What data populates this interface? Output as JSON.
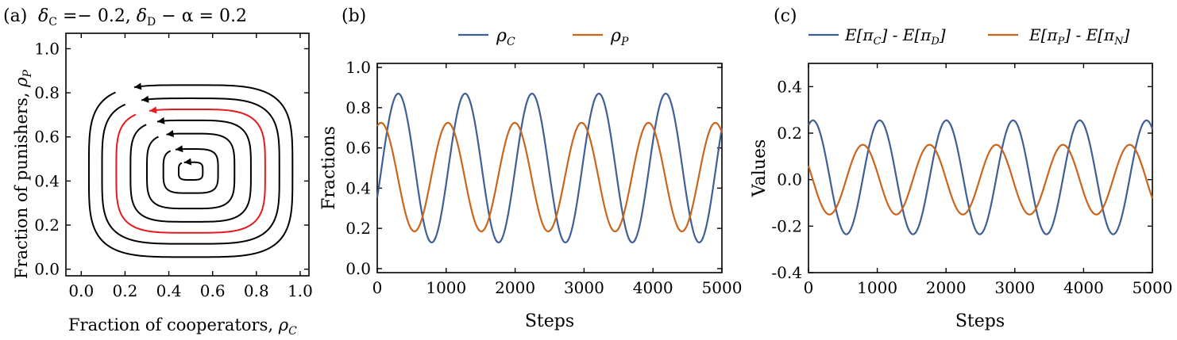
{
  "figure": {
    "panels": [
      "(a)",
      "(b)",
      "(c)"
    ]
  },
  "chart_data": [
    {
      "id": "a",
      "type": "line",
      "panel_label": "(a)",
      "title": {
        "d1": "δ",
        "d1_sub": "C",
        "mid": " =− 0.2, ",
        "d2": "δ",
        "d2_sub": "D",
        "tail": " − α = 0.2"
      },
      "xlabel": "Fraction of cooperators, ",
      "xlabel_sym": "ρ",
      "xlabel_sub": "C",
      "ylabel": "Fraction of punishers, ",
      "ylabel_sym": "ρ",
      "ylabel_sub": "P",
      "xlim": [
        -0.07,
        1.04
      ],
      "ylim": [
        -0.03,
        1.07
      ],
      "x_ticks": [
        "0.0",
        "0.2",
        "0.4",
        "0.6",
        "0.8",
        "1.0"
      ],
      "y_ticks": [
        "0.0",
        "0.2",
        "0.4",
        "0.6",
        "0.8",
        "1.0"
      ],
      "center": [
        0.5,
        0.445
      ],
      "orbits": [
        {
          "half_width": 0.055,
          "half_height": 0.04,
          "color": "#000000"
        },
        {
          "half_width": 0.125,
          "half_height": 0.1,
          "color": "#000000"
        },
        {
          "half_width": 0.2,
          "half_height": 0.17,
          "color": "#000000"
        },
        {
          "half_width": 0.275,
          "half_height": 0.23,
          "color": "#000000"
        },
        {
          "half_width": 0.34,
          "half_height": 0.28,
          "color": "#e41a1c"
        },
        {
          "half_width": 0.405,
          "half_height": 0.33,
          "color": "#000000"
        },
        {
          "half_width": 0.465,
          "half_height": 0.39,
          "color": "#000000"
        }
      ]
    },
    {
      "id": "b",
      "type": "line",
      "panel_label": "(b)",
      "xlabel": "Steps",
      "ylabel": "Fractions",
      "xlim": [
        0,
        5000
      ],
      "ylim": [
        -0.02,
        1.02
      ],
      "x_ticks": [
        "0",
        "1000",
        "2000",
        "3000",
        "4000",
        "5000"
      ],
      "y_ticks": [
        "0.0",
        "0.2",
        "0.4",
        "0.6",
        "0.8",
        "1.0"
      ],
      "legend": [
        "ρ",
        "ρ"
      ],
      "legend_subs": [
        "C",
        "P"
      ],
      "series": [
        {
          "color": "#3f5f98",
          "mean": 0.5,
          "amplitude": 0.37,
          "period": 970,
          "peak_step": 305
        },
        {
          "color": "#c8661d",
          "mean": 0.455,
          "amplitude": 0.27,
          "period": 970,
          "peak_step": 55
        }
      ]
    },
    {
      "id": "c",
      "type": "line",
      "panel_label": "(c)",
      "xlabel": "Steps",
      "ylabel": "Values",
      "xlim": [
        0,
        5000
      ],
      "ylim": [
        -0.4,
        0.5
      ],
      "x_ticks": [
        "0",
        "1000",
        "2000",
        "3000",
        "4000",
        "5000"
      ],
      "y_ticks": [
        "-0.4",
        "-0.2",
        "0.0",
        "0.2",
        "0.4"
      ],
      "legend": [
        "E[π",
        "] - E[π",
        "]"
      ],
      "legend_entries": [
        {
          "subs": [
            "C",
            "D"
          ]
        },
        {
          "subs": [
            "P",
            "N"
          ]
        }
      ],
      "series": [
        {
          "color": "#3f5f98",
          "mean": 0.01,
          "amplitude": 0.245,
          "period": 970,
          "peak_step": 65
        },
        {
          "color": "#c8661d",
          "mean": 0.0,
          "amplitude": 0.15,
          "period": 970,
          "peak_step": 790
        }
      ]
    }
  ]
}
